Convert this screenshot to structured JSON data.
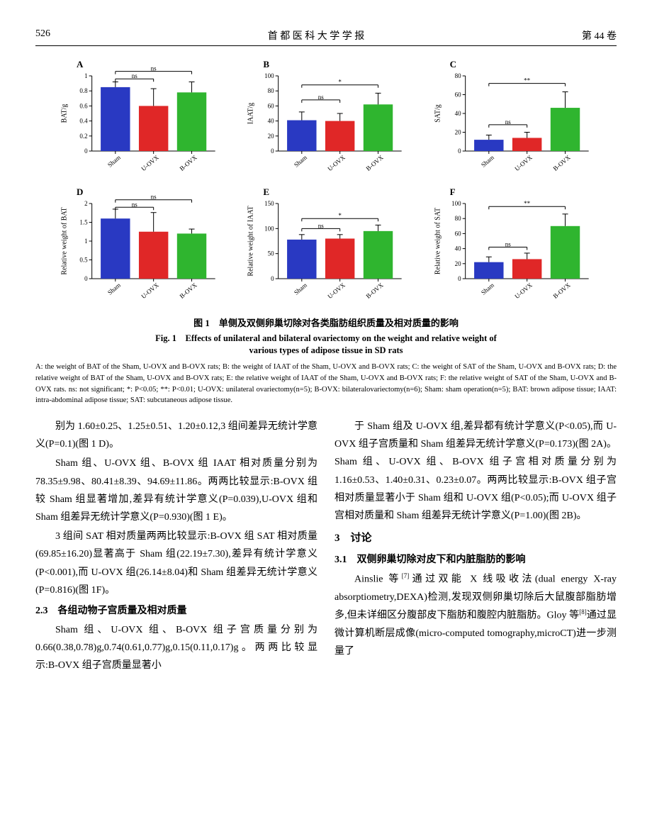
{
  "header": {
    "page": "526",
    "journal": "首 都 医 科 大 学 学 报",
    "volume": "第 44 卷"
  },
  "colors": {
    "sham": "#2939c2",
    "uovx": "#e02727",
    "bovx": "#2fb52f",
    "axis": "#000000",
    "tick": "#000000"
  },
  "xlabels": [
    "Sham",
    "U-OVX",
    "B-OVX"
  ],
  "charts": [
    {
      "panel": "A",
      "ylabel": "BAT/g",
      "ylim": [
        0,
        1.0
      ],
      "yticks": [
        0,
        0.2,
        0.4,
        0.6,
        0.8,
        1.0
      ],
      "vals": [
        0.85,
        0.6,
        0.78
      ],
      "errs": [
        0.07,
        0.23,
        0.14
      ],
      "sig": [
        {
          "from": 0,
          "to": 1,
          "label": "ns",
          "y": 0.96
        },
        {
          "from": 0,
          "to": 2,
          "label": "ns",
          "y": 1.06
        }
      ]
    },
    {
      "panel": "B",
      "ylabel": "IAAT/g",
      "ylim": [
        0,
        100
      ],
      "yticks": [
        0,
        20,
        40,
        60,
        80,
        100
      ],
      "vals": [
        41,
        40,
        62
      ],
      "errs": [
        11,
        10,
        15
      ],
      "sig": [
        {
          "from": 0,
          "to": 1,
          "label": "ns",
          "y": 68
        },
        {
          "from": 0,
          "to": 2,
          "label": "*",
          "y": 88
        }
      ]
    },
    {
      "panel": "C",
      "ylabel": "SAT/g",
      "ylim": [
        0,
        80
      ],
      "yticks": [
        0,
        20,
        40,
        60,
        80
      ],
      "vals": [
        12,
        14,
        46
      ],
      "errs": [
        5,
        6,
        17
      ],
      "sig": [
        {
          "from": 0,
          "to": 1,
          "label": "ns",
          "y": 28
        },
        {
          "from": 0,
          "to": 2,
          "label": "**",
          "y": 72
        }
      ]
    },
    {
      "panel": "D",
      "ylabel": "Relative weight of BAT",
      "ylim": [
        0,
        2.0
      ],
      "yticks": [
        0,
        0.5,
        1.0,
        1.5,
        2.0
      ],
      "vals": [
        1.6,
        1.25,
        1.2
      ],
      "errs": [
        0.25,
        0.51,
        0.12
      ],
      "sig": [
        {
          "from": 0,
          "to": 1,
          "label": "ns",
          "y": 1.9
        },
        {
          "from": 0,
          "to": 2,
          "label": "ns",
          "y": 2.1
        }
      ]
    },
    {
      "panel": "E",
      "ylabel": "Relative weight of IAAT",
      "ylim": [
        0,
        150
      ],
      "yticks": [
        0,
        50,
        100,
        150
      ],
      "vals": [
        78,
        80,
        95
      ],
      "errs": [
        10,
        8,
        12
      ],
      "sig": [
        {
          "from": 0,
          "to": 1,
          "label": "ns",
          "y": 100
        },
        {
          "from": 0,
          "to": 2,
          "label": "*",
          "y": 120
        }
      ]
    },
    {
      "panel": "F",
      "ylabel": "Relative weight of SAT",
      "ylim": [
        0,
        100
      ],
      "yticks": [
        0,
        20,
        40,
        60,
        80,
        100
      ],
      "vals": [
        22,
        26,
        70
      ],
      "errs": [
        7,
        8,
        16
      ],
      "sig": [
        {
          "from": 0,
          "to": 1,
          "label": "ns",
          "y": 42
        },
        {
          "from": 0,
          "to": 2,
          "label": "**",
          "y": 96
        }
      ]
    }
  ],
  "fig_caption_cn": "图 1　单侧及双侧卵巢切除对各类脂肪组织质量及相对质量的影响",
  "fig_caption_en1": "Fig. 1　Effects of unilateral and bilateral ovariectomy on the weight and relative weight of",
  "fig_caption_en2": "various types of adipose tissue in SD rats",
  "fig_desc": "A: the weight of BAT of the Sham, U-OVX and B-OVX rats; B: the weight of IAAT of the Sham, U-OVX and B-OVX rats; C: the weight of SAT of the Sham, U-OVX and B-OVX rats; D: the relative weight of BAT of the Sham, U-OVX and B-OVX rats; E: the relative weight of IAAT of the Sham, U-OVX and B-OVX rats; F: the relative weight of SAT of the Sham, U-OVX and B-OVX rats. ns: not significant; *: P<0.05; **: P<0.01; U-OVX: unilateral ovariectomy(n=5); B-OVX: bilateralovariectomy(n=6); Sham: sham operation(n=5); BAT: brown adipose tissue; IAAT: intra-abdominal adipose tissue; SAT: subcutaneous adipose tissue.",
  "body": {
    "p1": "别为 1.60±0.25、1.25±0.51、1.20±0.12,3 组间差异无统计学意义(P=0.1)(图 1 D)。",
    "p2": "Sham 组、U-OVX 组、B-OVX 组 IAAT 相对质量分别为 78.35±9.98、80.41±8.39、94.69±11.86。两两比较显示:B-OVX 组较 Sham 组显著增加,差异有统计学意义(P=0.039),U-OVX 组和 Sham 组差异无统计学意义(P=0.930)(图 1 E)。",
    "p3": "3 组间 SAT 相对质量两两比较显示:B-OVX 组 SAT 相对质量(69.85±16.20)显著高于 Sham 组(22.19±7.30),差异有统计学意义(P<0.001),而 U-OVX 组(26.14±8.04)和 Sham 组差异无统计学意义(P=0.816)(图 1F)。",
    "h23": "2.3　各组动物子宫质量及相对质量",
    "p4": "Sham 组、U-OVX 组、B-OVX 组子宫质量分别为 0.66(0.38,0.78)g,0.74(0.61,0.77)g,0.15(0.11,0.17)g。两两比较显示:B-OVX 组子宫质量显著小",
    "p5": "于 Sham 组及 U-OVX 组,差异都有统计学意义(P<0.05),而 U-OVX 组子宫质量和 Sham 组差异无统计学意义(P=0.173)(图 2A)。Sham 组、U-OVX 组、B-OVX 组子宫相对质量分别为 1.16±0.53、1.40±0.31、0.23±0.07。两两比较显示:B-OVX 组子宫相对质量显著小于 Sham 组和 U-OVX 组(P<0.05);而 U-OVX 组子宫相对质量和 Sham 组差异无统计学意义(P=1.00)(图 2B)。",
    "h3": "3　讨论",
    "h31": "3.1　双侧卵巢切除对皮下和内脏脂肪的影响",
    "p6a": "Ainslie 等",
    "p6ref1": "[7]",
    "p6b": "通过双能 X 线吸收法(dual energy X-ray absorptiometry,DEXA)检测,发现双侧卵巢切除后大鼠腹部脂肪增多,但未详细区分腹部皮下脂肪和腹腔内脏脂肪。Gloy 等",
    "p6ref2": "[8]",
    "p6c": "通过显微计算机断层成像(micro-computed tomography,microCT)进一步测量了"
  }
}
